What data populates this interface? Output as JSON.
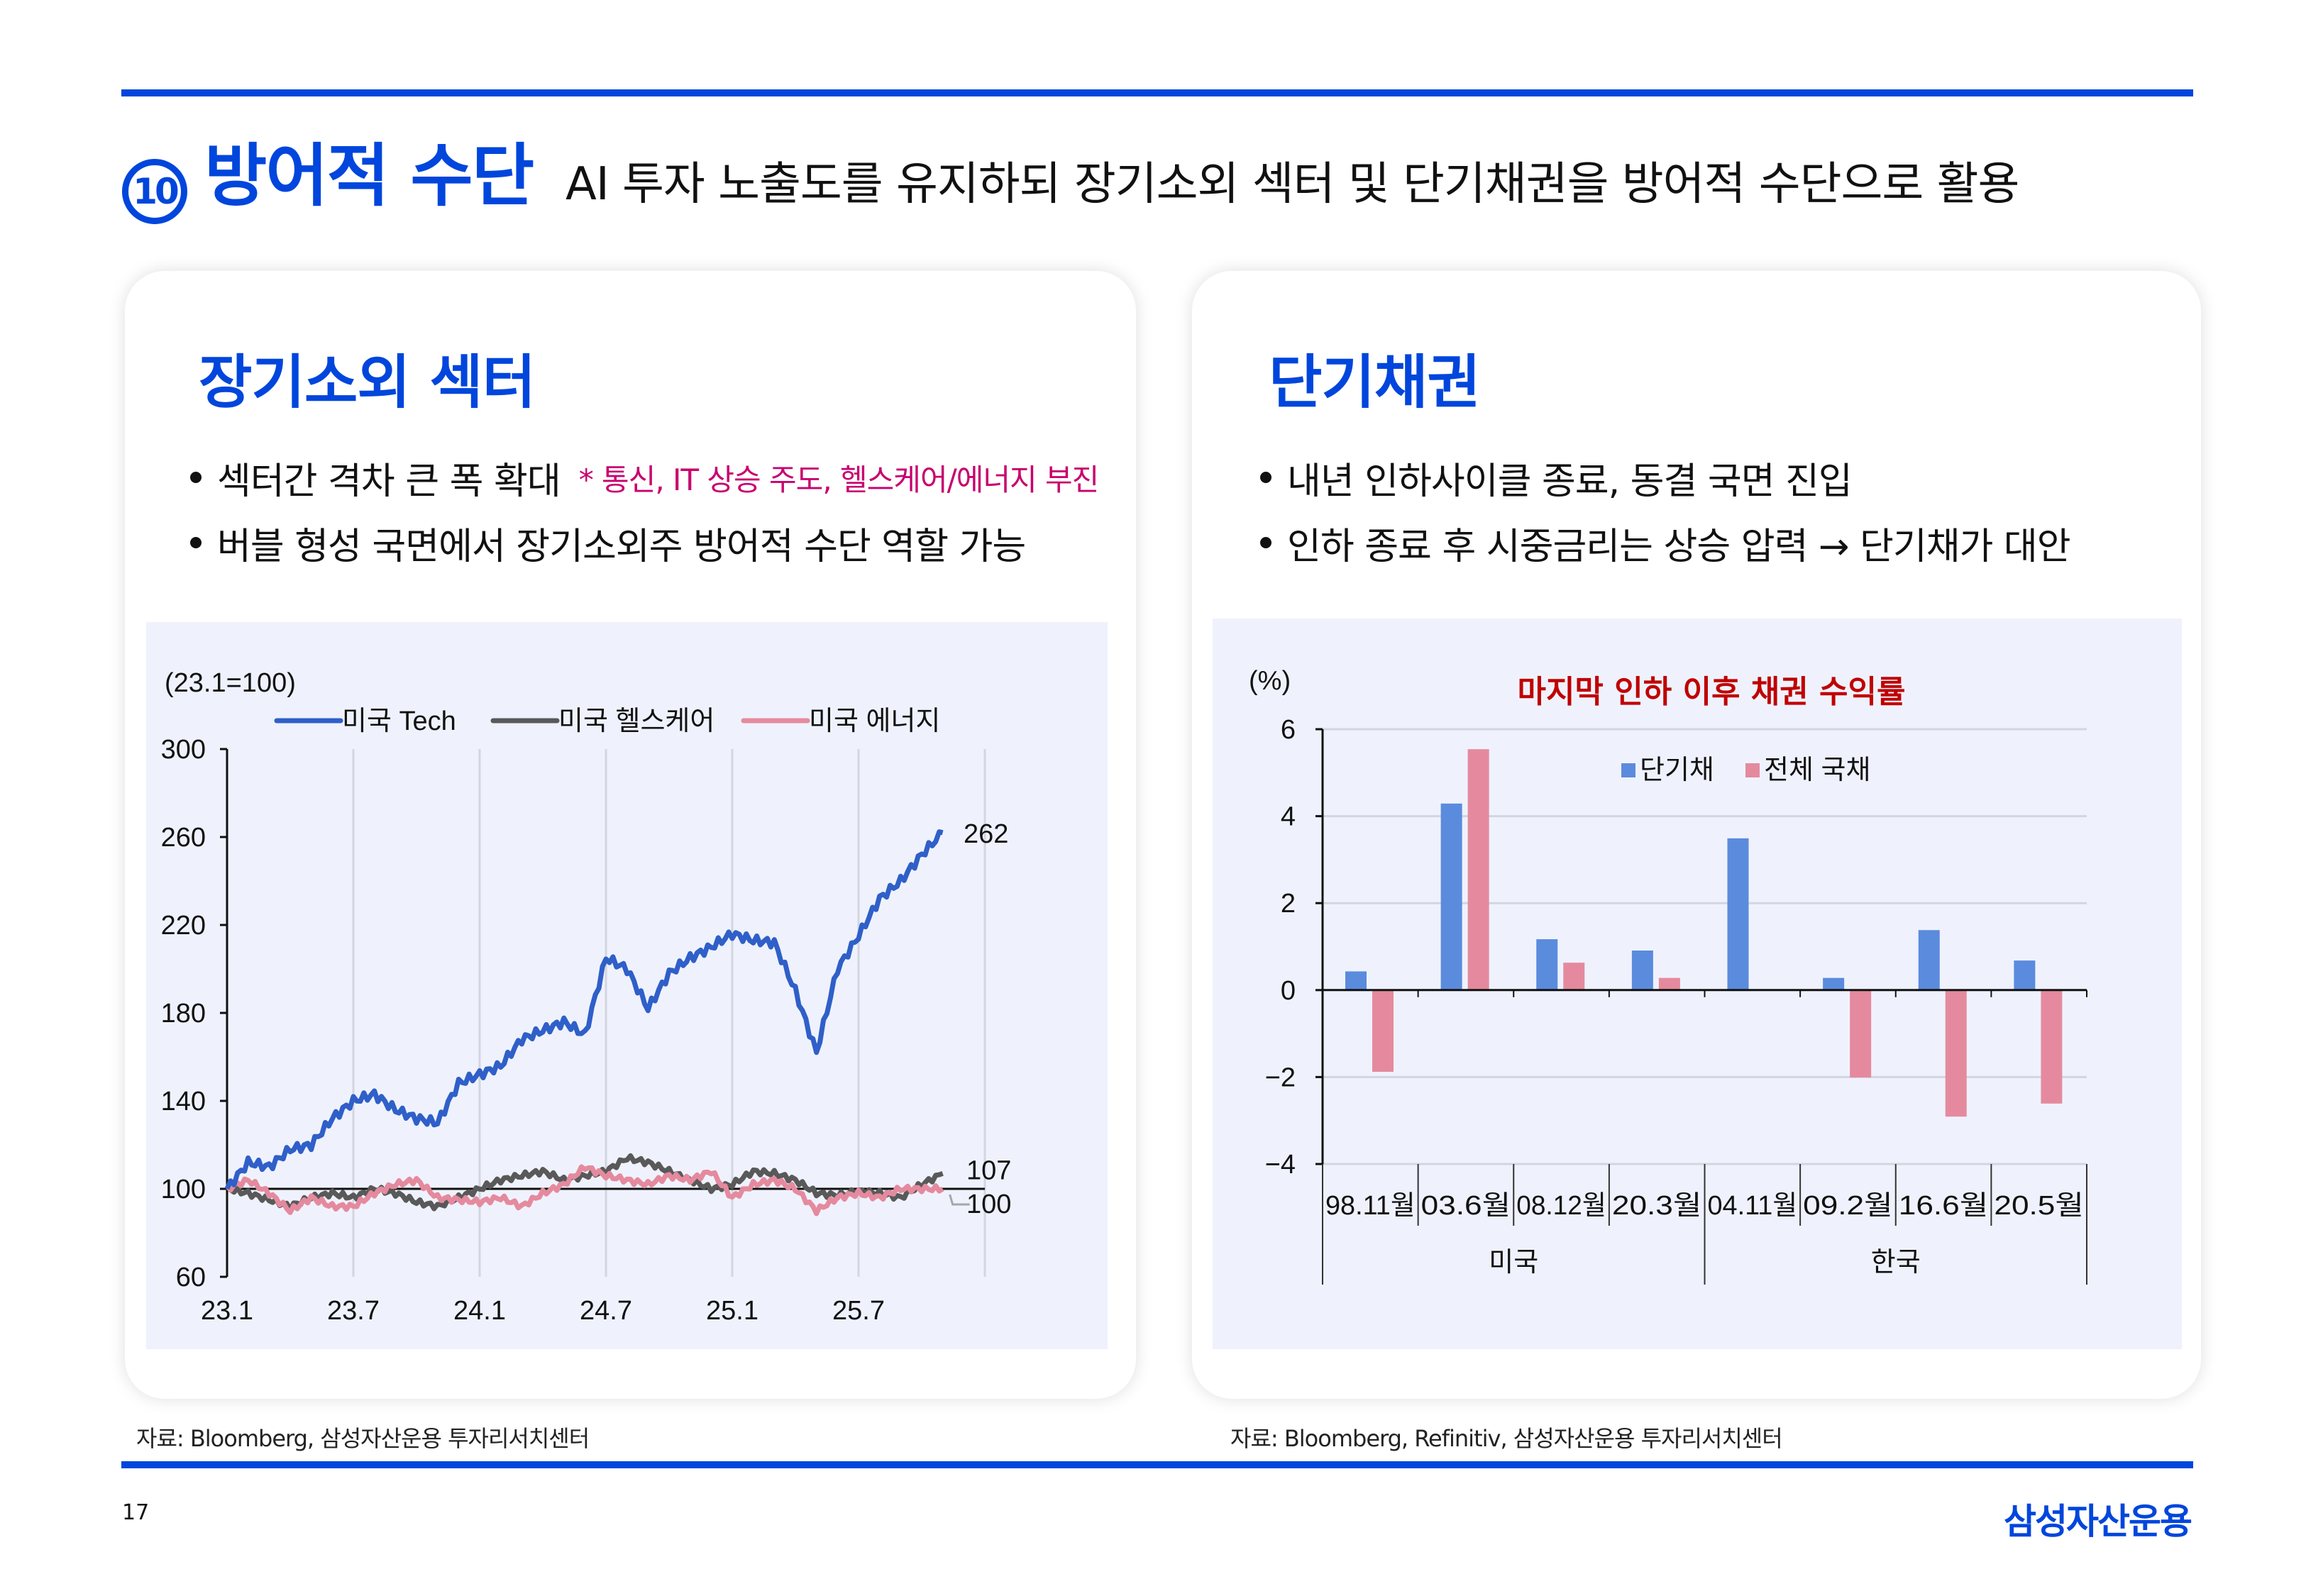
{
  "header": {
    "badge": "10",
    "title": "방어적 수단",
    "subtitle": "AI 투자 노출도를 유지하되 장기소외 섹터 및 단기채권을 방어적 수단으로 활용"
  },
  "left_card": {
    "title": "장기소외 섹터",
    "bullets": [
      {
        "text": "섹터간 격차 큰 폭 확대",
        "note": "* 통신, IT 상승 주도, 헬스케어/에너지 부진"
      },
      {
        "text": "버블 형성 국면에서 장기소외주 방어적 수단 역할 가능",
        "note": ""
      }
    ],
    "source": "자료: Bloomberg, 삼성자산운용 투자리서치센터"
  },
  "right_card": {
    "title": "단기채권",
    "bullets": [
      {
        "text": "내년 인하사이클 종료, 동결 국면 진입"
      },
      {
        "text": "인하 종료 후 시중금리는 상승 압력 → 단기채가 대안"
      }
    ],
    "source": "자료: Bloomberg, Refinitiv, 삼성자산운용 투자리서치센터"
  },
  "footer": {
    "page_number": "17",
    "logo": "삼성자산운용"
  },
  "colors": {
    "brand_blue": "#0046dc",
    "panel_bg": "#eff2fd",
    "tech": "#2f5fc8",
    "healthcare": "#595959",
    "energy": "#e58a9e",
    "short_bond": "#5b8bdd",
    "all_gov": "#e58a9e",
    "note_magenta": "#c8006e",
    "chart_title_red": "#c00000"
  },
  "chart_data": [
    {
      "type": "line",
      "title": "",
      "unit_label": "(23.1=100)",
      "xlabel": "",
      "ylabel": "",
      "ylim": [
        60,
        300
      ],
      "yticks": [
        60,
        100,
        140,
        180,
        220,
        260,
        300
      ],
      "xticks": [
        "23.1",
        "23.7",
        "24.1",
        "24.7",
        "25.1",
        "25.7"
      ],
      "grid": "vertical",
      "legend_position": "top",
      "reference_line": 100,
      "x": [
        "23.1",
        "23.2",
        "23.3",
        "23.4",
        "23.5",
        "23.6",
        "23.7",
        "23.8",
        "23.9",
        "23.10",
        "23.11",
        "23.12",
        "24.1",
        "24.2",
        "24.3",
        "24.4",
        "24.5",
        "24.6",
        "24.7",
        "24.8",
        "24.9",
        "24.10",
        "24.11",
        "24.12",
        "25.1",
        "25.2",
        "25.3",
        "25.4",
        "25.5",
        "25.6",
        "25.7",
        "25.8",
        "25.9",
        "25.10",
        "25.11"
      ],
      "series": [
        {
          "name": "미국 Tech",
          "end_label": "262",
          "values": [
            100,
            112,
            110,
            118,
            120,
            132,
            140,
            143,
            136,
            132,
            130,
            148,
            152,
            156,
            168,
            172,
            176,
            170,
            205,
            200,
            182,
            198,
            205,
            210,
            216,
            213,
            212,
            190,
            162,
            200,
            215,
            232,
            240,
            252,
            262
          ]
        },
        {
          "name": "미국 헬스케어",
          "end_label": "107",
          "values": [
            100,
            98,
            95,
            92,
            96,
            98,
            96,
            100,
            98,
            94,
            92,
            96,
            100,
            104,
            106,
            108,
            104,
            106,
            108,
            114,
            112,
            108,
            104,
            100,
            102,
            108,
            107,
            104,
            98,
            97,
            99,
            98,
            96,
            102,
            107
          ]
        },
        {
          "name": "미국 에너지",
          "end_label": "100",
          "values": [
            100,
            104,
            98,
            90,
            96,
            92,
            92,
            98,
            102,
            104,
            96,
            95,
            94,
            96,
            92,
            98,
            102,
            110,
            106,
            104,
            102,
            106,
            104,
            108,
            96,
            102,
            104,
            100,
            90,
            96,
            98,
            96,
            100,
            100,
            100
          ]
        }
      ]
    },
    {
      "type": "bar",
      "title": "마지막 인하 이후 채권 수익률",
      "unit_label": "(%)",
      "xlabel": "",
      "ylabel": "",
      "ylim": [
        -4,
        6
      ],
      "yticks": [
        -4,
        -2,
        0,
        2,
        4,
        6
      ],
      "grid": "horizontal",
      "legend_position": "top-center",
      "categories": [
        "98.11월",
        "03.6월",
        "08.12월",
        "20.3월",
        "04.11월",
        "09.2월",
        "16.6월",
        "20.5월"
      ],
      "groups": [
        {
          "label": "미국",
          "span": [
            0,
            3
          ]
        },
        {
          "label": "한국",
          "span": [
            4,
            7
          ]
        }
      ],
      "series": [
        {
          "name": "단기채",
          "values": [
            0.43,
            4.29,
            1.17,
            0.91,
            3.49,
            0.28,
            1.38,
            0.68
          ]
        },
        {
          "name": "전체 국채",
          "values": [
            -1.88,
            5.54,
            0.63,
            0.28,
            0.0,
            -2.01,
            -2.91,
            -2.61
          ]
        }
      ]
    }
  ]
}
